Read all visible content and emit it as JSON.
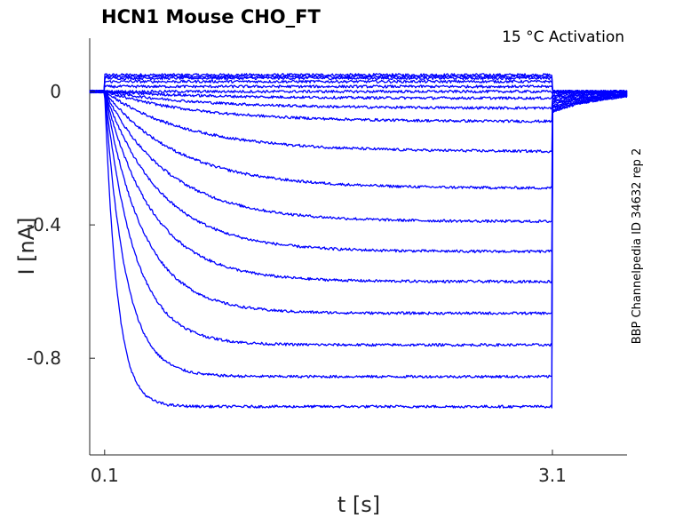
{
  "chart_data": {
    "type": "line",
    "title": "HCN1  Mouse  CHO_FT",
    "annotation": "15 °C  Activation",
    "side_label": "BBP Channelpedia ID 34632 rep 2",
    "xlabel": "t [s]",
    "ylabel": "I [nA]",
    "xlim": [
      0.0,
      3.6
    ],
    "ylim": [
      -1.09,
      0.16
    ],
    "x_ticks": [
      0.1,
      3.1
    ],
    "x_tick_labels": [
      "0.1",
      "3.1"
    ],
    "y_ticks": [
      0,
      -0.4,
      -0.8
    ],
    "y_tick_labels": [
      "0",
      "-0.4",
      "-0.8"
    ],
    "grid": false,
    "legend": "none",
    "color": "#0000ff",
    "pulse": {
      "t_on": 0.1,
      "t_off": 3.1
    },
    "series": [
      {
        "steady": 0.05,
        "tail": 0.0
      },
      {
        "steady": 0.045,
        "tail": 0.0
      },
      {
        "steady": 0.04,
        "tail": 0.0
      },
      {
        "steady": 0.03,
        "tail": 0.0
      },
      {
        "steady": 0.015,
        "tail": 0.0
      },
      {
        "steady": 0.0,
        "tail": -0.005
      },
      {
        "steady": -0.02,
        "tail": -0.01
      },
      {
        "steady": -0.05,
        "tail": -0.015
      },
      {
        "steady": -0.09,
        "tail": -0.02
      },
      {
        "steady": -0.18,
        "tail": -0.025
      },
      {
        "steady": -0.29,
        "tail": -0.03
      },
      {
        "steady": -0.39,
        "tail": -0.035
      },
      {
        "steady": -0.48,
        "tail": -0.04
      },
      {
        "steady": -0.57,
        "tail": -0.045
      },
      {
        "steady": -0.665,
        "tail": -0.05
      },
      {
        "steady": -0.76,
        "tail": -0.055
      },
      {
        "steady": -0.855,
        "tail": -0.06
      },
      {
        "steady": -0.945,
        "tail": -0.06
      }
    ]
  }
}
